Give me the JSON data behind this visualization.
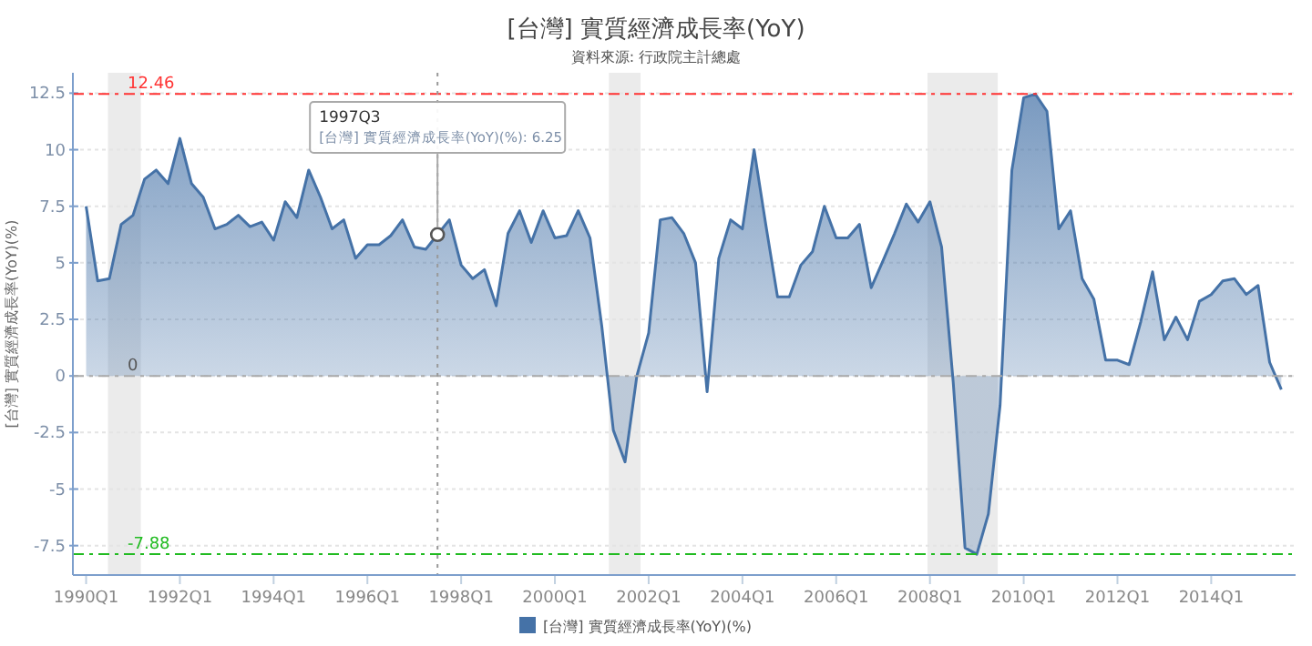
{
  "chart_data": {
    "type": "area",
    "title": "[台灣] 實質經濟成長率(YoY)",
    "subtitle": "資料來源: 行政院主計總處",
    "ylabel": "[台灣] 實質經濟成長率(YoY)(%)",
    "x": [
      "1990-01",
      "1990-04",
      "1990-07",
      "1990-10",
      "1991-01",
      "1991-04",
      "1991-07",
      "1991-10",
      "1992-01",
      "1992-04",
      "1992-07",
      "1992-10",
      "1993-01",
      "1993-04",
      "1993-07",
      "1993-10",
      "1994-01",
      "1994-04",
      "1994-07",
      "1994-10",
      "1995-01",
      "1995-04",
      "1995-07",
      "1995-10",
      "1996-01",
      "1996-04",
      "1996-07",
      "1996-10",
      "1997-01",
      "1997-04",
      "1997-07",
      "1997-10",
      "1998-01",
      "1998-04",
      "1998-07",
      "1998-10",
      "1999-01",
      "1999-04",
      "1999-07",
      "1999-10",
      "2000-01",
      "2000-04",
      "2000-07",
      "2000-10",
      "2001-01",
      "2001-04",
      "2001-07",
      "2001-10",
      "2002-01",
      "2002-04",
      "2002-07",
      "2002-10",
      "2003-01",
      "2003-04",
      "2003-07",
      "2003-10",
      "2004-01",
      "2004-04",
      "2004-07",
      "2004-10",
      "2005-01",
      "2005-04",
      "2005-07",
      "2005-10",
      "2006-01",
      "2006-04",
      "2006-07",
      "2006-10",
      "2007-01",
      "2007-04",
      "2007-07",
      "2007-10",
      "2008-01",
      "2008-04",
      "2008-07",
      "2008-10",
      "2009-01",
      "2009-04",
      "2009-07",
      "2009-10",
      "2010-01",
      "2010-04",
      "2010-07",
      "2010-10",
      "2011-01",
      "2011-04",
      "2011-07",
      "2011-10",
      "2012-01",
      "2012-04",
      "2012-07",
      "2012-10",
      "2013-01",
      "2013-04",
      "2013-07",
      "2013-10",
      "2014-01",
      "2014-04",
      "2014-07",
      "2014-10",
      "2015-01",
      "2015-04",
      "2015-07"
    ],
    "series": [
      {
        "name": "[台灣] 實質經濟成長率(YoY)(%)",
        "color": "#4572a7",
        "values": [
          7.5,
          4.2,
          4.3,
          6.7,
          7.1,
          8.7,
          9.1,
          8.5,
          10.5,
          8.5,
          7.9,
          6.5,
          6.7,
          7.1,
          6.6,
          6.8,
          6,
          7.7,
          7,
          9.1,
          7.9,
          6.5,
          6.9,
          5.2,
          5.8,
          5.8,
          6.2,
          6.9,
          5.7,
          5.6,
          6.25,
          6.9,
          4.9,
          4.3,
          4.7,
          3.1,
          6.3,
          7.3,
          5.9,
          7.3,
          6.1,
          6.2,
          7.3,
          6.1,
          2.2,
          -2.4,
          -3.8,
          0,
          1.9,
          6.9,
          7,
          6.3,
          5,
          -0.7,
          5.2,
          6.9,
          6.5,
          10,
          6.7,
          3.5,
          3.5,
          4.9,
          5.5,
          7.5,
          6.1,
          6.1,
          6.7,
          3.9,
          5.1,
          6.3,
          7.6,
          6.8,
          7.7,
          5.7,
          -0.3,
          -7.6,
          -7.88,
          -6.1,
          -1.3,
          9.1,
          12.3,
          12.46,
          11.7,
          6.5,
          7.3,
          4.3,
          3.4,
          0.7,
          0.7,
          0.5,
          2.4,
          4.6,
          1.6,
          2.6,
          1.6,
          3.3,
          3.6,
          4.2,
          4.3,
          3.6,
          4,
          0.6,
          -0.6
        ]
      }
    ],
    "xlim": [
      "1989-09-20",
      "2015-10-20"
    ],
    "ylim": [
      -8.8,
      13.4
    ],
    "xticks": [
      {
        "value": "1990-01",
        "label": "1990Q1"
      },
      {
        "value": "1992-01",
        "label": "1992Q1"
      },
      {
        "value": "1994-01",
        "label": "1994Q1"
      },
      {
        "value": "1996-01",
        "label": "1996Q1"
      },
      {
        "value": "1998-01",
        "label": "1998Q1"
      },
      {
        "value": "2000-01",
        "label": "2000Q1"
      },
      {
        "value": "2002-01",
        "label": "2002Q1"
      },
      {
        "value": "2004-01",
        "label": "2004Q1"
      },
      {
        "value": "2006-01",
        "label": "2006Q1"
      },
      {
        "value": "2008-01",
        "label": "2008Q1"
      },
      {
        "value": "2010-01",
        "label": "2010Q1"
      },
      {
        "value": "2012-01",
        "label": "2012Q1"
      },
      {
        "value": "2014-01",
        "label": "2014Q1"
      }
    ],
    "yticks": [
      -7.5,
      -5,
      -2.5,
      0,
      2.5,
      5,
      7.5,
      10,
      12.5
    ],
    "grid": "y",
    "legend": "bottom",
    "bands": [
      {
        "axis": "x",
        "from": "1990-06-20",
        "to": "1991-03-03",
        "color": "#ebebeb"
      },
      {
        "axis": "x",
        "from": "2001-02-25",
        "to": "2001-10-30",
        "color": "#ebebeb"
      },
      {
        "axis": "x",
        "from": "2007-12-13",
        "to": "2009-06-13",
        "color": "#ebebeb"
      }
    ],
    "ref_lines": [
      {
        "axis": "y",
        "value": 12.46,
        "label": "12.46",
        "color": "#ff3333",
        "line_style": "dashed"
      },
      {
        "axis": "y",
        "value": 0,
        "label": "0",
        "color": "#aaaaaa",
        "line_style": "dashed"
      },
      {
        "axis": "y",
        "value": -7.88,
        "label": "-7.88",
        "color": "#22bb22",
        "line_style": "dashed"
      },
      {
        "axis": "x",
        "value": "1997-07",
        "color": "#999999",
        "line_style": "dotted"
      }
    ],
    "annotations": [
      {
        "text": "1997Q3\n[台灣] 實質經濟成長率(YoY)(%): 6.25",
        "x": "1997-07",
        "y": 6.25
      }
    ]
  }
}
